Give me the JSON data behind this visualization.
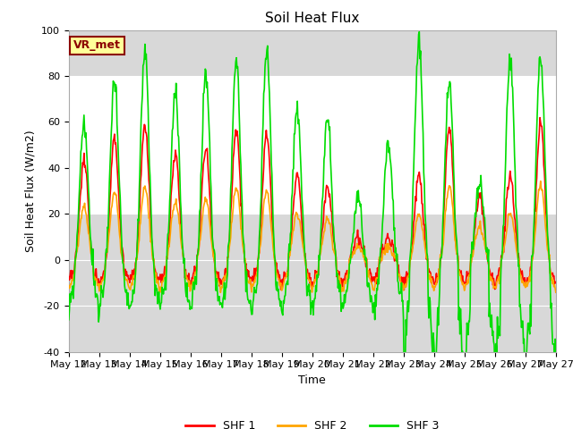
{
  "title": "Soil Heat Flux",
  "xlabel": "Time",
  "ylabel": "Soil Heat Flux (W/m2)",
  "ylim": [
    -40,
    100
  ],
  "annotation": "VR_met",
  "legend": [
    "SHF 1",
    "SHF 2",
    "SHF 3"
  ],
  "colors": [
    "#ff0000",
    "#ffa500",
    "#00dd00"
  ],
  "background_color": "#ffffff",
  "plot_bg_color": "#d8d8d8",
  "white_band_lo": 20,
  "white_band_hi": 80,
  "xtick_labels": [
    "May 12",
    "May 13",
    "May 14",
    "May 15",
    "May 16",
    "May 17",
    "May 18",
    "May 19",
    "May 20",
    "May 21",
    "May 22",
    "May 23",
    "May 24",
    "May 25",
    "May 26",
    "May 27"
  ],
  "ytick_labels": [
    "-40",
    "-20",
    "0",
    "20",
    "40",
    "60",
    "80",
    "100"
  ],
  "ytick_vals": [
    -40,
    -20,
    0,
    20,
    40,
    60,
    80,
    100
  ],
  "n_days": 16,
  "pts_per_day": 48,
  "shf1_day_peaks": [
    43,
    53,
    58,
    46,
    48,
    57,
    55,
    37,
    32,
    10,
    10,
    37,
    58,
    28,
    37,
    60
  ],
  "shf2_ratio": 0.55,
  "shf3_day_peaks": [
    59,
    78,
    91,
    73,
    80,
    86,
    91,
    65,
    61,
    27,
    50,
    95,
    77,
    35,
    88,
    88
  ],
  "shf1_night_depth": -10,
  "shf2_night_depth": -13,
  "shf3_night_depth": -22,
  "figsize": [
    6.4,
    4.8
  ],
  "dpi": 100,
  "title_fontsize": 11,
  "axis_label_fontsize": 9,
  "tick_fontsize": 8,
  "legend_fontsize": 9,
  "line_width": 1.2
}
